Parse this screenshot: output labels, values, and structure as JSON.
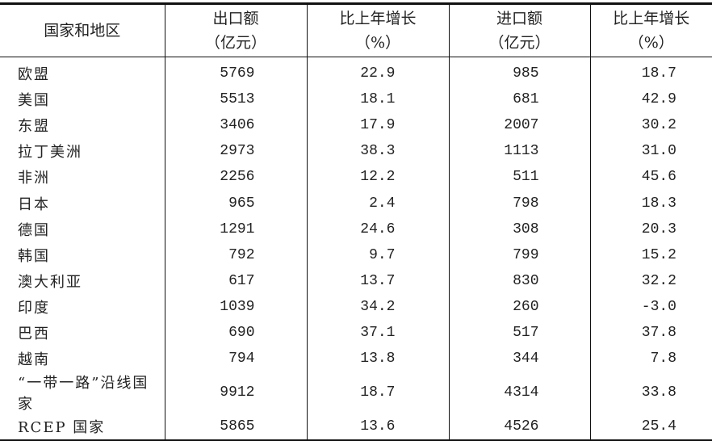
{
  "table": {
    "headers": [
      {
        "line1": "国家和地区",
        "line2": ""
      },
      {
        "line1": "出口额",
        "line2": "（亿元）"
      },
      {
        "line1": "比上年增长",
        "line2": "（%）"
      },
      {
        "line1": "进口额",
        "line2": "（亿元）"
      },
      {
        "line1": "比上年增长",
        "line2": "（%）"
      }
    ],
    "rows": [
      [
        "欧盟",
        "5769",
        "22.9",
        "985",
        "18.7"
      ],
      [
        "美国",
        "5513",
        "18.1",
        "681",
        "42.9"
      ],
      [
        "东盟",
        "3406",
        "17.9",
        "2007",
        "30.2"
      ],
      [
        "拉丁美洲",
        "2973",
        "38.3",
        "1113",
        "31.0"
      ],
      [
        "非洲",
        "2256",
        "12.2",
        "511",
        "45.6"
      ],
      [
        "日本",
        "965",
        "2.4",
        "798",
        "18.3"
      ],
      [
        "德国",
        "1291",
        "24.6",
        "308",
        "20.3"
      ],
      [
        "韩国",
        "792",
        "9.7",
        "799",
        "15.2"
      ],
      [
        "澳大利亚",
        "617",
        "13.7",
        "830",
        "32.2"
      ],
      [
        "印度",
        "1039",
        "34.2",
        "260",
        "-3.0"
      ],
      [
        "巴西",
        "690",
        "37.1",
        "517",
        "37.8"
      ],
      [
        "越南",
        "794",
        "13.8",
        "344",
        "7.8"
      ],
      [
        "“一带一路”沿线国家",
        "9912",
        "18.7",
        "4314",
        "33.8"
      ],
      [
        "RCEP 国家",
        "5865",
        "13.6",
        "4526",
        "25.4"
      ]
    ]
  }
}
